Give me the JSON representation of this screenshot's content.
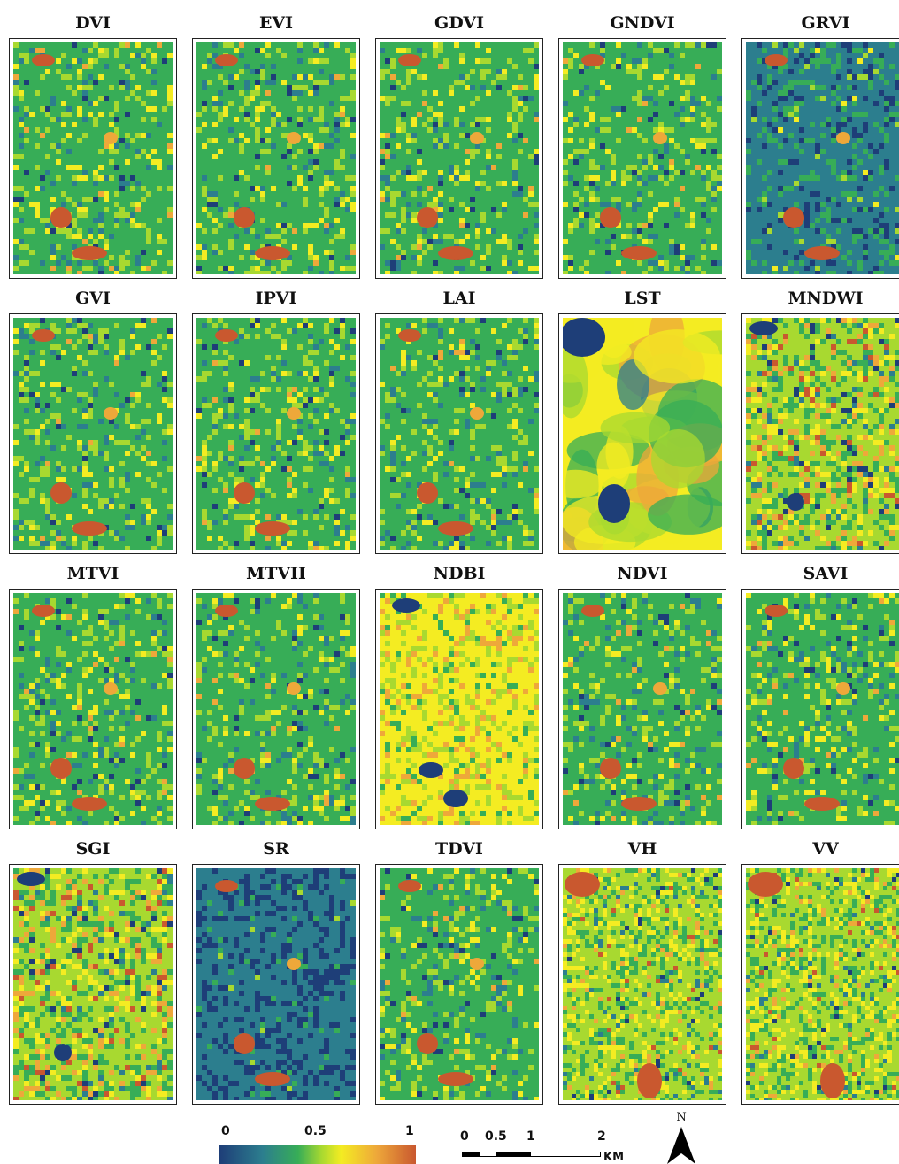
{
  "panels": [
    {
      "label": "DVI",
      "style": "veg"
    },
    {
      "label": "EVI",
      "style": "veg"
    },
    {
      "label": "GDVI",
      "style": "veg"
    },
    {
      "label": "GNDVI",
      "style": "veg"
    },
    {
      "label": "GRVI",
      "style": "bluish"
    },
    {
      "label": "GVI",
      "style": "veg"
    },
    {
      "label": "IPVI",
      "style": "veg"
    },
    {
      "label": "LAI",
      "style": "veg"
    },
    {
      "label": "LST",
      "style": "smooth"
    },
    {
      "label": "MNDWI",
      "style": "water"
    },
    {
      "label": "MTVI",
      "style": "veg"
    },
    {
      "label": "MTVII",
      "style": "veg"
    },
    {
      "label": "NDBI",
      "style": "yellow"
    },
    {
      "label": "NDVI",
      "style": "veg"
    },
    {
      "label": "SAVI",
      "style": "veg"
    },
    {
      "label": "SGI",
      "style": "water"
    },
    {
      "label": "SR",
      "style": "blue"
    },
    {
      "label": "TDVI",
      "style": "veg"
    },
    {
      "label": "VH",
      "style": "speckle"
    },
    {
      "label": "VV",
      "style": "speckle"
    }
  ],
  "legend": {
    "min_label": "0",
    "mid_label": "0.5",
    "max_label": "1",
    "colors": [
      "#1e3e78",
      "#2c7e8e",
      "#37ad57",
      "#a8d930",
      "#f4ec22",
      "#eea83a",
      "#c9582f"
    ]
  },
  "scale_bar": {
    "ticks": [
      "0",
      "0.5",
      "1",
      "2"
    ],
    "unit": "KM"
  },
  "north_arrow": {
    "label": "N"
  }
}
